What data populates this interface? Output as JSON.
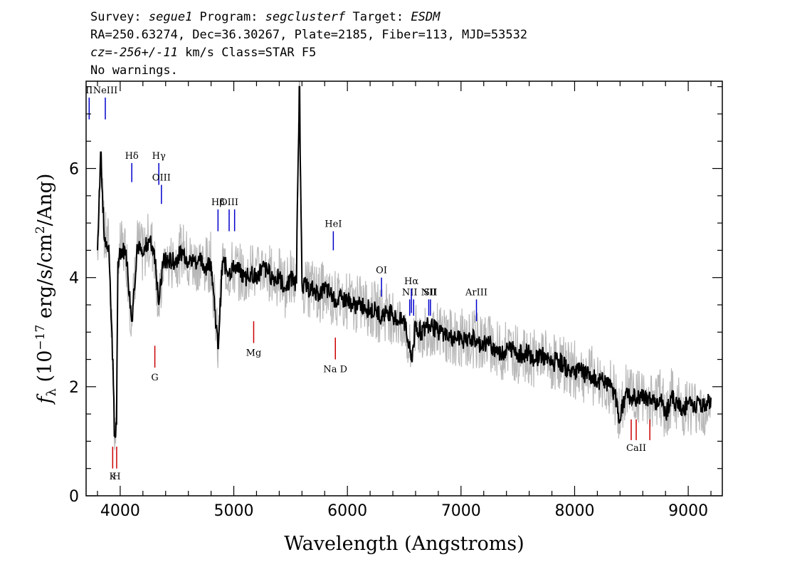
{
  "header": {
    "line1": {
      "survey_label": "Survey: ",
      "survey": "segue1",
      "program_label": " Program: ",
      "program": "segclusterf",
      "target_label": " Target: ",
      "target": "ESDM"
    },
    "line2": "RA=250.63274, Dec=36.30267, Plate=2185, Fiber=113, MJD=53532",
    "line3": {
      "cz_label": "cz=",
      "cz_value": "-256+/-11",
      "cz_unit": " km/s",
      "class_text": " Class=STAR F5"
    },
    "line4": "No warnings."
  },
  "chart_data": {
    "type": "line",
    "xlabel": "Wavelength (Angstroms)",
    "ylabel": "f_λ (10^-17 erg/s/cm^2/Ang)",
    "xlim": [
      3700,
      9300
    ],
    "ylim": [
      0,
      7.6
    ],
    "x_ticks": [
      4000,
      5000,
      6000,
      7000,
      8000,
      9000
    ],
    "y_ticks": [
      0,
      2,
      4,
      6
    ],
    "series": [
      {
        "name": "",
        "color": "#000000",
        "x": [
          3800,
          3830,
          3860,
          3900,
          3935,
          3950,
          3968,
          3980,
          4000,
          4050,
          4102,
          4150,
          4200,
          4250,
          4300,
          4340,
          4380,
          4420,
          4480,
          4550,
          4600,
          4650,
          4700,
          4750,
          4800,
          4861,
          4900,
          4959,
          5007,
          5050,
          5100,
          5150,
          5200,
          5250,
          5300,
          5350,
          5400,
          5450,
          5500,
          5550,
          5577,
          5600,
          5650,
          5700,
          5750,
          5800,
          5850,
          5893,
          5950,
          6000,
          6050,
          6100,
          6150,
          6200,
          6250,
          6300,
          6350,
          6400,
          6450,
          6500,
          6563,
          6600,
          6650,
          6700,
          6750,
          6800,
          6850,
          6900,
          6950,
          7000,
          7050,
          7100,
          7150,
          7200,
          7250,
          7300,
          7350,
          7400,
          7450,
          7500,
          7550,
          7600,
          7650,
          7700,
          7750,
          7800,
          7850,
          7900,
          7950,
          8000,
          8050,
          8100,
          8150,
          8200,
          8250,
          8300,
          8350,
          8400,
          8450,
          8500,
          8550,
          8600,
          8650,
          8700,
          8750,
          8800,
          8850,
          8900,
          8950,
          9000,
          9050,
          9100,
          9150,
          9200
        ],
        "y": [
          4.5,
          6.3,
          4.7,
          4.6,
          2.5,
          1.1,
          1.3,
          4.3,
          4.5,
          4.5,
          3.2,
          4.6,
          4.4,
          4.7,
          4.5,
          3.5,
          4.3,
          4.3,
          4.3,
          4.5,
          4.3,
          4.3,
          4.3,
          4.2,
          4.3,
          2.7,
          4.3,
          4.1,
          4.2,
          4.1,
          4.0,
          4.1,
          4.0,
          4.2,
          4.1,
          4.0,
          4.0,
          3.8,
          4.0,
          3.9,
          7.5,
          3.9,
          3.8,
          3.8,
          3.7,
          3.8,
          3.7,
          3.6,
          3.6,
          3.6,
          3.5,
          3.5,
          3.5,
          3.4,
          3.4,
          3.3,
          3.4,
          3.3,
          3.2,
          3.2,
          2.5,
          3.1,
          3.0,
          3.1,
          3.1,
          3.0,
          3.0,
          2.9,
          2.9,
          2.9,
          2.8,
          2.9,
          2.8,
          2.8,
          2.8,
          2.7,
          2.6,
          2.7,
          2.7,
          2.6,
          2.6,
          2.6,
          2.5,
          2.6,
          2.5,
          2.4,
          2.5,
          2.4,
          2.3,
          2.3,
          2.3,
          2.2,
          2.2,
          2.1,
          2.1,
          2.0,
          1.9,
          1.4,
          1.9,
          1.8,
          1.8,
          1.8,
          1.8,
          1.7,
          1.8,
          1.5,
          1.8,
          1.7,
          1.6,
          1.7,
          1.6,
          1.7,
          1.6,
          1.8
        ]
      }
    ],
    "noise_series": {
      "name": "",
      "color": "#b8b8b8"
    },
    "emission_lines": [
      {
        "label": "II",
        "wavelength": 3727,
        "y_top": 7.3,
        "y_bot": 6.9
      },
      {
        "label": "NeIII",
        "wavelength": 3869,
        "y_top": 7.3,
        "y_bot": 6.9
      },
      {
        "label": "Hδ",
        "wavelength": 4102,
        "y_top": 6.1,
        "y_bot": 5.75
      },
      {
        "label": "Hγ",
        "wavelength": 4340,
        "y_top": 6.1,
        "y_bot": 5.7
      },
      {
        "label": "OIII",
        "wavelength": 4363,
        "y_top": 5.7,
        "y_bot": 5.35
      },
      {
        "label": "Hβ",
        "wavelength": 4861,
        "y_top": 5.25,
        "y_bot": 4.85
      },
      {
        "label": "OIII",
        "wavelength": 4959,
        "y_top": 5.25,
        "y_bot": 4.85
      },
      {
        "label": "",
        "wavelength": 5007,
        "y_top": 5.25,
        "y_bot": 4.85
      },
      {
        "label": "HeI",
        "wavelength": 5876,
        "y_top": 4.85,
        "y_bot": 4.5
      },
      {
        "label": "OI",
        "wavelength": 6300,
        "y_top": 4.0,
        "y_bot": 3.65
      },
      {
        "label": "NII",
        "wavelength": 6548,
        "y_top": 3.6,
        "y_bot": 3.3
      },
      {
        "label": "Hα",
        "wavelength": 6563,
        "y_top": 3.8,
        "y_bot": 3.35
      },
      {
        "label": "",
        "wavelength": 6583,
        "y_top": 3.6,
        "y_bot": 3.3
      },
      {
        "label": "NII",
        "wavelength": 6716,
        "y_top": 3.6,
        "y_bot": 3.3
      },
      {
        "label": "SII",
        "wavelength": 6731,
        "y_top": 3.6,
        "y_bot": 3.3
      },
      {
        "label": "ArIII",
        "wavelength": 7136,
        "y_top": 3.6,
        "y_bot": 3.2
      }
    ],
    "absorption_lines": [
      {
        "label": "",
        "wavelength": 3934,
        "y_top": 0.9,
        "y_bot": 0.5
      },
      {
        "label": "",
        "wavelength": 3969,
        "y_top": 0.9,
        "y_bot": 0.5
      },
      {
        "label": "G",
        "wavelength": 4305,
        "y_top": 2.75,
        "y_bot": 2.35
      },
      {
        "label": "Mg",
        "wavelength": 5175,
        "y_top": 3.2,
        "y_bot": 2.8
      },
      {
        "label": "Na D",
        "wavelength": 5894,
        "y_top": 2.9,
        "y_bot": 2.5
      },
      {
        "label": "",
        "wavelength": 8498,
        "y_top": 1.4,
        "y_bot": 1.02
      },
      {
        "label": "",
        "wavelength": 8542,
        "y_top": 1.4,
        "y_bot": 1.02
      },
      {
        "label": "",
        "wavelength": 8662,
        "y_top": 1.4,
        "y_bot": 1.02
      }
    ],
    "absorption_group_labels": [
      {
        "label": "K",
        "wavelength": 3934,
        "y": 0.3
      },
      {
        "label": "H",
        "wavelength": 3969,
        "y": 0.3
      },
      {
        "label": "CaII",
        "wavelength": 8542,
        "y": 0.82
      }
    ]
  }
}
